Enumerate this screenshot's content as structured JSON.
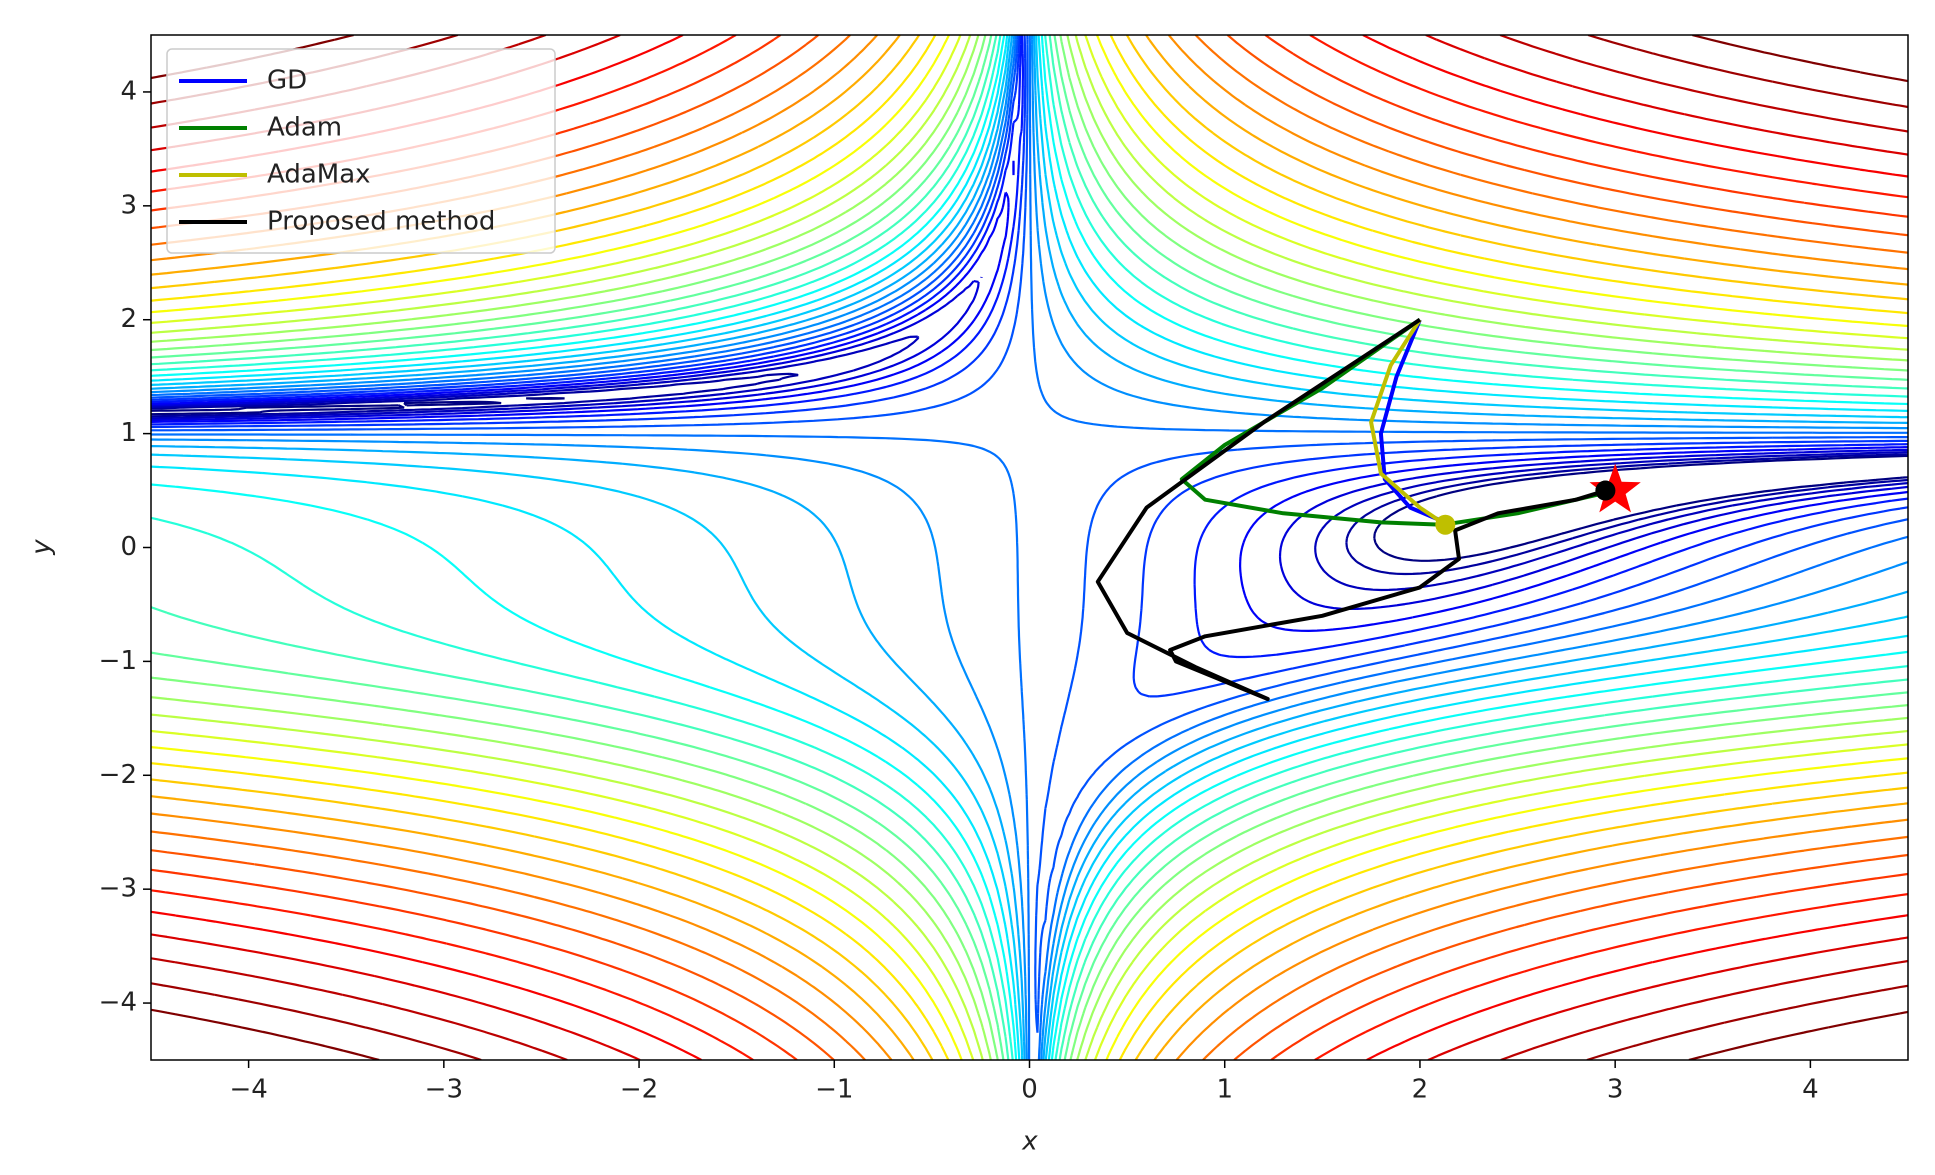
{
  "chart_data": {
    "type": "line",
    "xlabel": "x",
    "ylabel": "y",
    "xlim": [
      -4.5,
      4.5
    ],
    "ylim": [
      -4.5,
      4.5
    ],
    "xticks": [
      {
        "value": -4,
        "label": "−4"
      },
      {
        "value": -3,
        "label": "−3"
      },
      {
        "value": -2,
        "label": "−2"
      },
      {
        "value": -1,
        "label": "−1"
      },
      0,
      1,
      2,
      3,
      4
    ],
    "yticks": [
      {
        "value": -4,
        "label": "−4"
      },
      {
        "value": -3,
        "label": "−3"
      },
      {
        "value": -2,
        "label": "−2"
      },
      {
        "value": -1,
        "label": "−1"
      },
      0,
      1,
      2,
      3,
      4
    ],
    "legend": "upper left",
    "series": [
      {
        "name": "GD",
        "color": "#0000ff",
        "x": [
          2,
          1.88,
          1.8,
          1.82,
          1.95,
          2.13
        ],
        "y": [
          2,
          1.5,
          1.0,
          0.6,
          0.35,
          0.22
        ]
      },
      {
        "name": "Adam",
        "color": "#008000",
        "x": [
          2,
          1.5,
          1.0,
          0.78,
          0.9,
          1.3,
          1.8,
          2.12,
          2.5,
          2.95
        ],
        "y": [
          2,
          1.4,
          0.9,
          0.6,
          0.42,
          0.3,
          0.22,
          0.2,
          0.3,
          0.48
        ]
      },
      {
        "name": "AdaMax",
        "color": "#bfbf00",
        "x": [
          2,
          1.85,
          1.75,
          1.8,
          2.0,
          2.13
        ],
        "y": [
          2,
          1.6,
          1.1,
          0.65,
          0.35,
          0.2
        ]
      },
      {
        "name": "Proposed method",
        "color": "#000000",
        "x": [
          2,
          1.2,
          0.6,
          0.35,
          0.5,
          0.85,
          1.22,
          0.75,
          0.72,
          0.9,
          1.5,
          2.0,
          2.2,
          2.18,
          2.4,
          2.8,
          2.95
        ],
        "y": [
          2,
          1.1,
          0.35,
          -0.3,
          -0.75,
          -1.05,
          -1.33,
          -1.0,
          -0.9,
          -0.78,
          -0.6,
          -0.35,
          -0.1,
          0.15,
          0.3,
          0.42,
          0.5
        ]
      }
    ],
    "minimum": {
      "x": 3,
      "y": 0.5,
      "color": "#ff0000"
    }
  }
}
